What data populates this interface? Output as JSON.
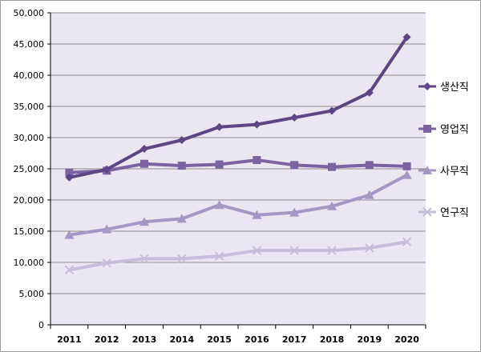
{
  "chart_data": {
    "type": "line",
    "title": "",
    "xlabel": "",
    "ylabel": "",
    "categories": [
      "2011",
      "2012",
      "2013",
      "2014",
      "2015",
      "2016",
      "2017",
      "2018",
      "2019",
      "2020"
    ],
    "ylim": [
      0,
      50000
    ],
    "yticks": [
      0,
      5000,
      10000,
      15000,
      20000,
      25000,
      30000,
      35000,
      40000,
      45000,
      50000
    ],
    "ytick_labels": [
      "0",
      "5,000",
      "10,000",
      "15,000",
      "20,000",
      "25,000",
      "30,000",
      "35,000",
      "40,000",
      "45,000",
      "50,000"
    ],
    "grid": "horizontal",
    "legend_position": "right",
    "plot_background": "#ebe7f2",
    "series": [
      {
        "name": "생산직",
        "marker": "diamond",
        "color": "#5d4683",
        "values": [
          23600,
          24900,
          28200,
          29600,
          31700,
          32100,
          33200,
          34300,
          37200,
          46100
        ]
      },
      {
        "name": "영업직",
        "marker": "square",
        "color": "#7a63a0",
        "values": [
          24400,
          24700,
          25800,
          25500,
          25700,
          26400,
          25600,
          25300,
          25600,
          25400
        ]
      },
      {
        "name": "사무직",
        "marker": "triangle",
        "color": "#a597c4",
        "values": [
          14400,
          15300,
          16500,
          17000,
          19200,
          17600,
          18000,
          19000,
          20800,
          24000
        ]
      },
      {
        "name": "연구직",
        "marker": "x",
        "color": "#c6bdda",
        "values": [
          8800,
          9900,
          10600,
          10600,
          11000,
          11900,
          11900,
          11900,
          12300,
          13300
        ]
      }
    ]
  }
}
